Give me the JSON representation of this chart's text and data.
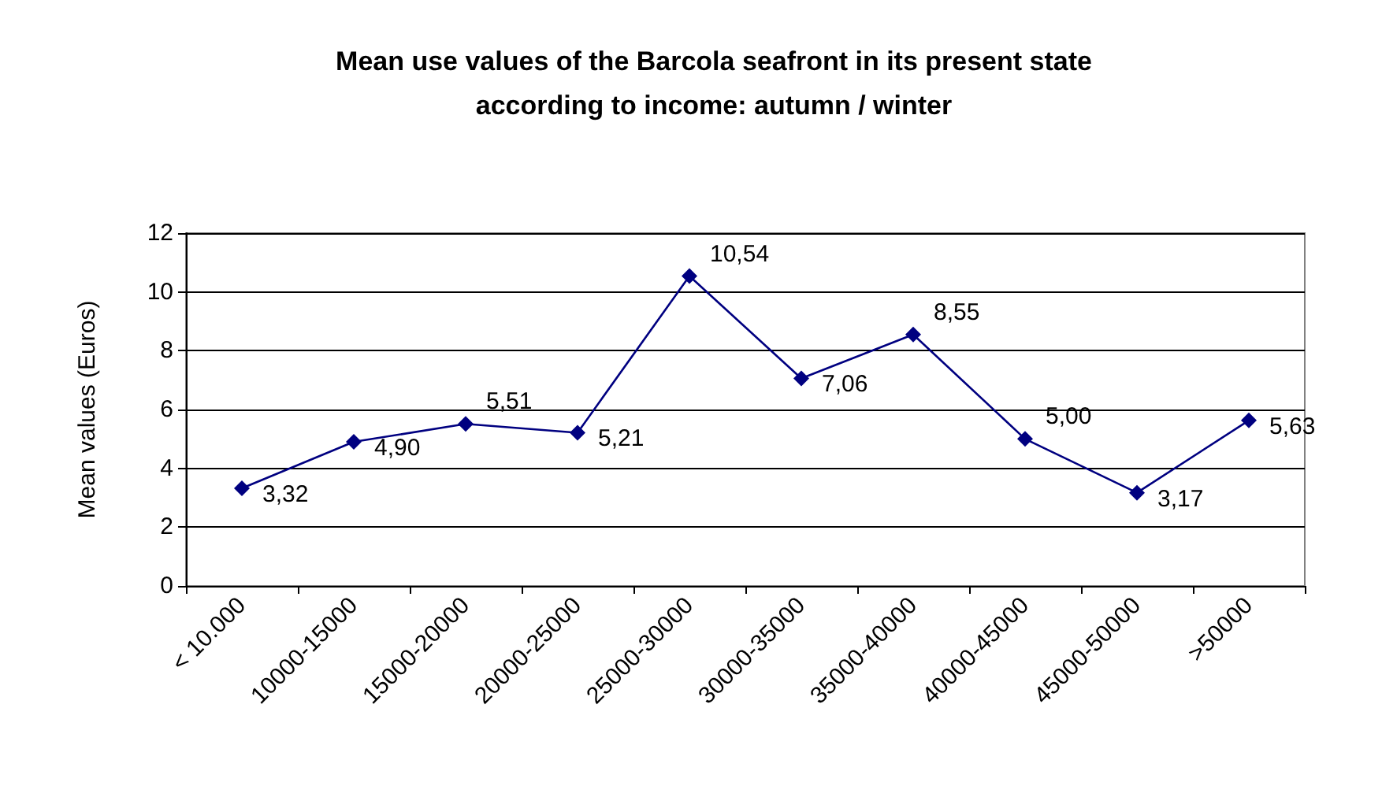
{
  "chart_data": {
    "type": "line",
    "title": "Mean use values of the Barcola seafront in its present state\naccording to income: autumn / winter",
    "ylabel": "Mean values (Euros)",
    "categories": [
      "< 10.000",
      "10000-15000",
      "15000-20000",
      "20000-25000",
      "25000-30000",
      "30000-35000",
      "35000-40000",
      "40000-45000",
      "45000-50000",
      ">50000"
    ],
    "series": [
      {
        "color": "#000080",
        "values": [
          3.32,
          4.9,
          5.51,
          5.21,
          10.54,
          7.06,
          8.55,
          5.0,
          3.17,
          5.63
        ],
        "value_labels": [
          "3,32",
          "4,90",
          "5,51",
          "5,21",
          "10,54",
          "7,06",
          "8,55",
          "5,00",
          "3,17",
          "5,63"
        ]
      }
    ],
    "ylim": [
      0,
      12
    ],
    "yticks": [
      0,
      2,
      4,
      6,
      8,
      10,
      12
    ],
    "grid": "y",
    "marker": "diamond",
    "line_style": "solid"
  }
}
